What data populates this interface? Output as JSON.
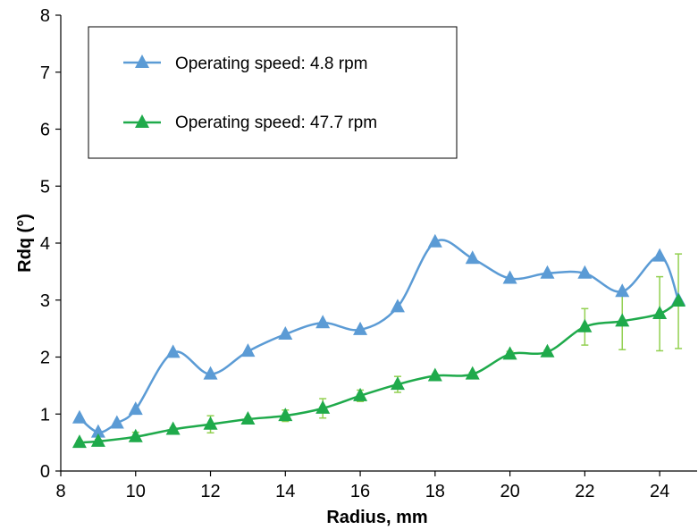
{
  "chart_data": {
    "type": "line",
    "title": "",
    "xlabel": "Radius, mm",
    "ylabel": "Rdq (°)",
    "xlim": [
      8,
      25
    ],
    "ylim": [
      0,
      8
    ],
    "x_ticks": [
      "8",
      "10",
      "12",
      "14",
      "16",
      "18",
      "20",
      "22",
      "24"
    ],
    "y_ticks": [
      "0",
      "1",
      "2",
      "3",
      "4",
      "5",
      "6",
      "7",
      "8"
    ],
    "grid": false,
    "legend_position": "top-left",
    "series": [
      {
        "name": "Operating speed: 4.8 rpm",
        "color": "#5b9bd5",
        "marker": "triangle",
        "x": [
          8.5,
          9,
          9.5,
          10,
          11,
          12,
          13,
          14,
          15,
          16,
          17,
          18,
          19,
          20,
          21,
          22,
          23,
          24,
          24.5
        ],
        "y": [
          0.93,
          0.68,
          0.84,
          1.08,
          2.08,
          1.7,
          2.1,
          2.4,
          2.6,
          2.48,
          2.88,
          4.02,
          3.73,
          3.38,
          3.47,
          3.47,
          3.15,
          3.77,
          3.0
        ]
      },
      {
        "name": "Operating speed: 47.7 rpm",
        "color": "#1faa4b",
        "marker": "triangle",
        "x": [
          8.5,
          9,
          10,
          11,
          12,
          13,
          14,
          15,
          16,
          17,
          18,
          19,
          20,
          21,
          22,
          23,
          24,
          24.5
        ],
        "y": [
          0.5,
          0.52,
          0.6,
          0.73,
          0.82,
          0.91,
          0.97,
          1.1,
          1.32,
          1.52,
          1.67,
          1.7,
          2.05,
          2.09,
          2.53,
          2.63,
          2.76,
          2.98
        ],
        "error": [
          0.03,
          0.03,
          0.08,
          0.03,
          0.15,
          0.03,
          0.1,
          0.17,
          0.1,
          0.14,
          0.03,
          0.03,
          0.05,
          0.03,
          0.32,
          0.5,
          0.65,
          0.83
        ]
      }
    ]
  }
}
